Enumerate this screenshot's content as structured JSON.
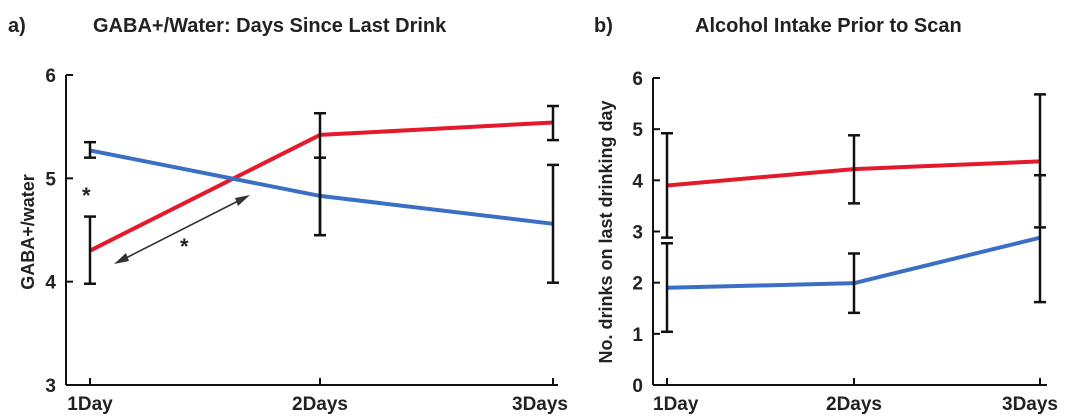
{
  "figure": {
    "panel_a_label": "a)",
    "panel_b_label": "b)"
  },
  "colors": {
    "red_series": "#e31a2c",
    "blue_series": "#3a6fc4",
    "error_bar": "#111111",
    "axis": "#111111",
    "arrow": "#333333"
  },
  "chart_data": [
    {
      "type": "line",
      "title": "GABA+/Water: Days Since Last Drink",
      "xlabel": "",
      "ylabel": "GABA+/water",
      "categories": [
        "1Day",
        "2Days",
        "3Days"
      ],
      "ylim": [
        3,
        6
      ],
      "yticks": [
        3,
        4,
        5,
        6
      ],
      "grid": false,
      "series": [
        {
          "color": "#e31a2c",
          "values": [
            4.3,
            5.42,
            5.54
          ],
          "lower": [
            3.98,
            4.45,
            5.37
          ],
          "upper": [
            4.63,
            5.63,
            5.7
          ]
        },
        {
          "color": "#3a6fc4",
          "values": [
            5.27,
            4.83,
            4.56
          ],
          "lower": [
            5.2,
            4.45,
            3.99
          ],
          "upper": [
            5.35,
            5.2,
            5.13
          ]
        }
      ],
      "annotations": [
        {
          "text": "*",
          "x": "1Day",
          "y": 4.9
        },
        {
          "text": "*",
          "x": "1Day-2Days",
          "y": 4.4
        }
      ]
    },
    {
      "type": "line",
      "title": "Alcohol Intake Prior to Scan",
      "xlabel": "",
      "ylabel": "No. drinks on last drinking day",
      "categories": [
        "1Day",
        "2Days",
        "3Days"
      ],
      "ylim": [
        0,
        6
      ],
      "yticks": [
        0,
        1,
        2,
        3,
        4,
        5,
        6
      ],
      "grid": false,
      "series": [
        {
          "color": "#e31a2c",
          "values": [
            3.9,
            4.22,
            4.37
          ],
          "lower": [
            2.88,
            3.55,
            3.08
          ],
          "upper": [
            4.92,
            4.88,
            5.68
          ]
        },
        {
          "color": "#3a6fc4",
          "values": [
            1.9,
            1.99,
            2.88
          ],
          "lower": [
            1.04,
            1.41,
            1.62
          ],
          "upper": [
            2.77,
            2.57,
            4.1
          ]
        }
      ]
    }
  ]
}
